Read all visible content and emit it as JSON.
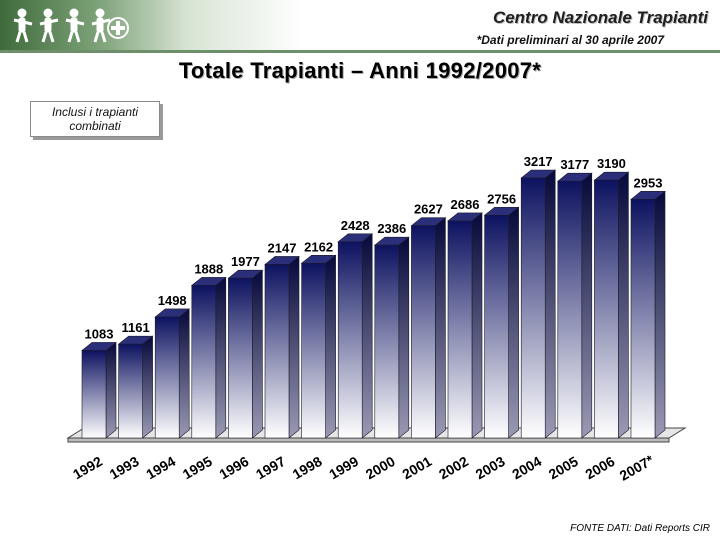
{
  "header": {
    "org_name": "Centro Nazionale Trapianti",
    "note": "*Dati preliminari al 30 aprile 2007"
  },
  "title": "Totale Trapianti – Anni 1992/2007*",
  "annotation": "Inclusi i trapianti combinati",
  "source": "FONTE DATI: Dati Reports CIR",
  "colors": {
    "bar_top": "#0d1260",
    "bar_bottom": "#ffffff",
    "header_accent": "#3f6b3c"
  },
  "chart_data": {
    "type": "bar",
    "categories": [
      "1992",
      "1993",
      "1994",
      "1995",
      "1996",
      "1997",
      "1998",
      "1999",
      "2000",
      "2001",
      "2002",
      "2003",
      "2004",
      "2005",
      "2006",
      "2007*"
    ],
    "values": [
      1083,
      1161,
      1498,
      1888,
      1977,
      2147,
      2162,
      2428,
      2386,
      2627,
      2686,
      2756,
      3217,
      3177,
      3190,
      2953
    ],
    "title": "Totale Trapianti – Anni 1992/2007*",
    "xlabel": "",
    "ylabel": "",
    "ylim": [
      0,
      3300
    ],
    "grid": false,
    "legend": "none",
    "style": "3d-gradient"
  }
}
